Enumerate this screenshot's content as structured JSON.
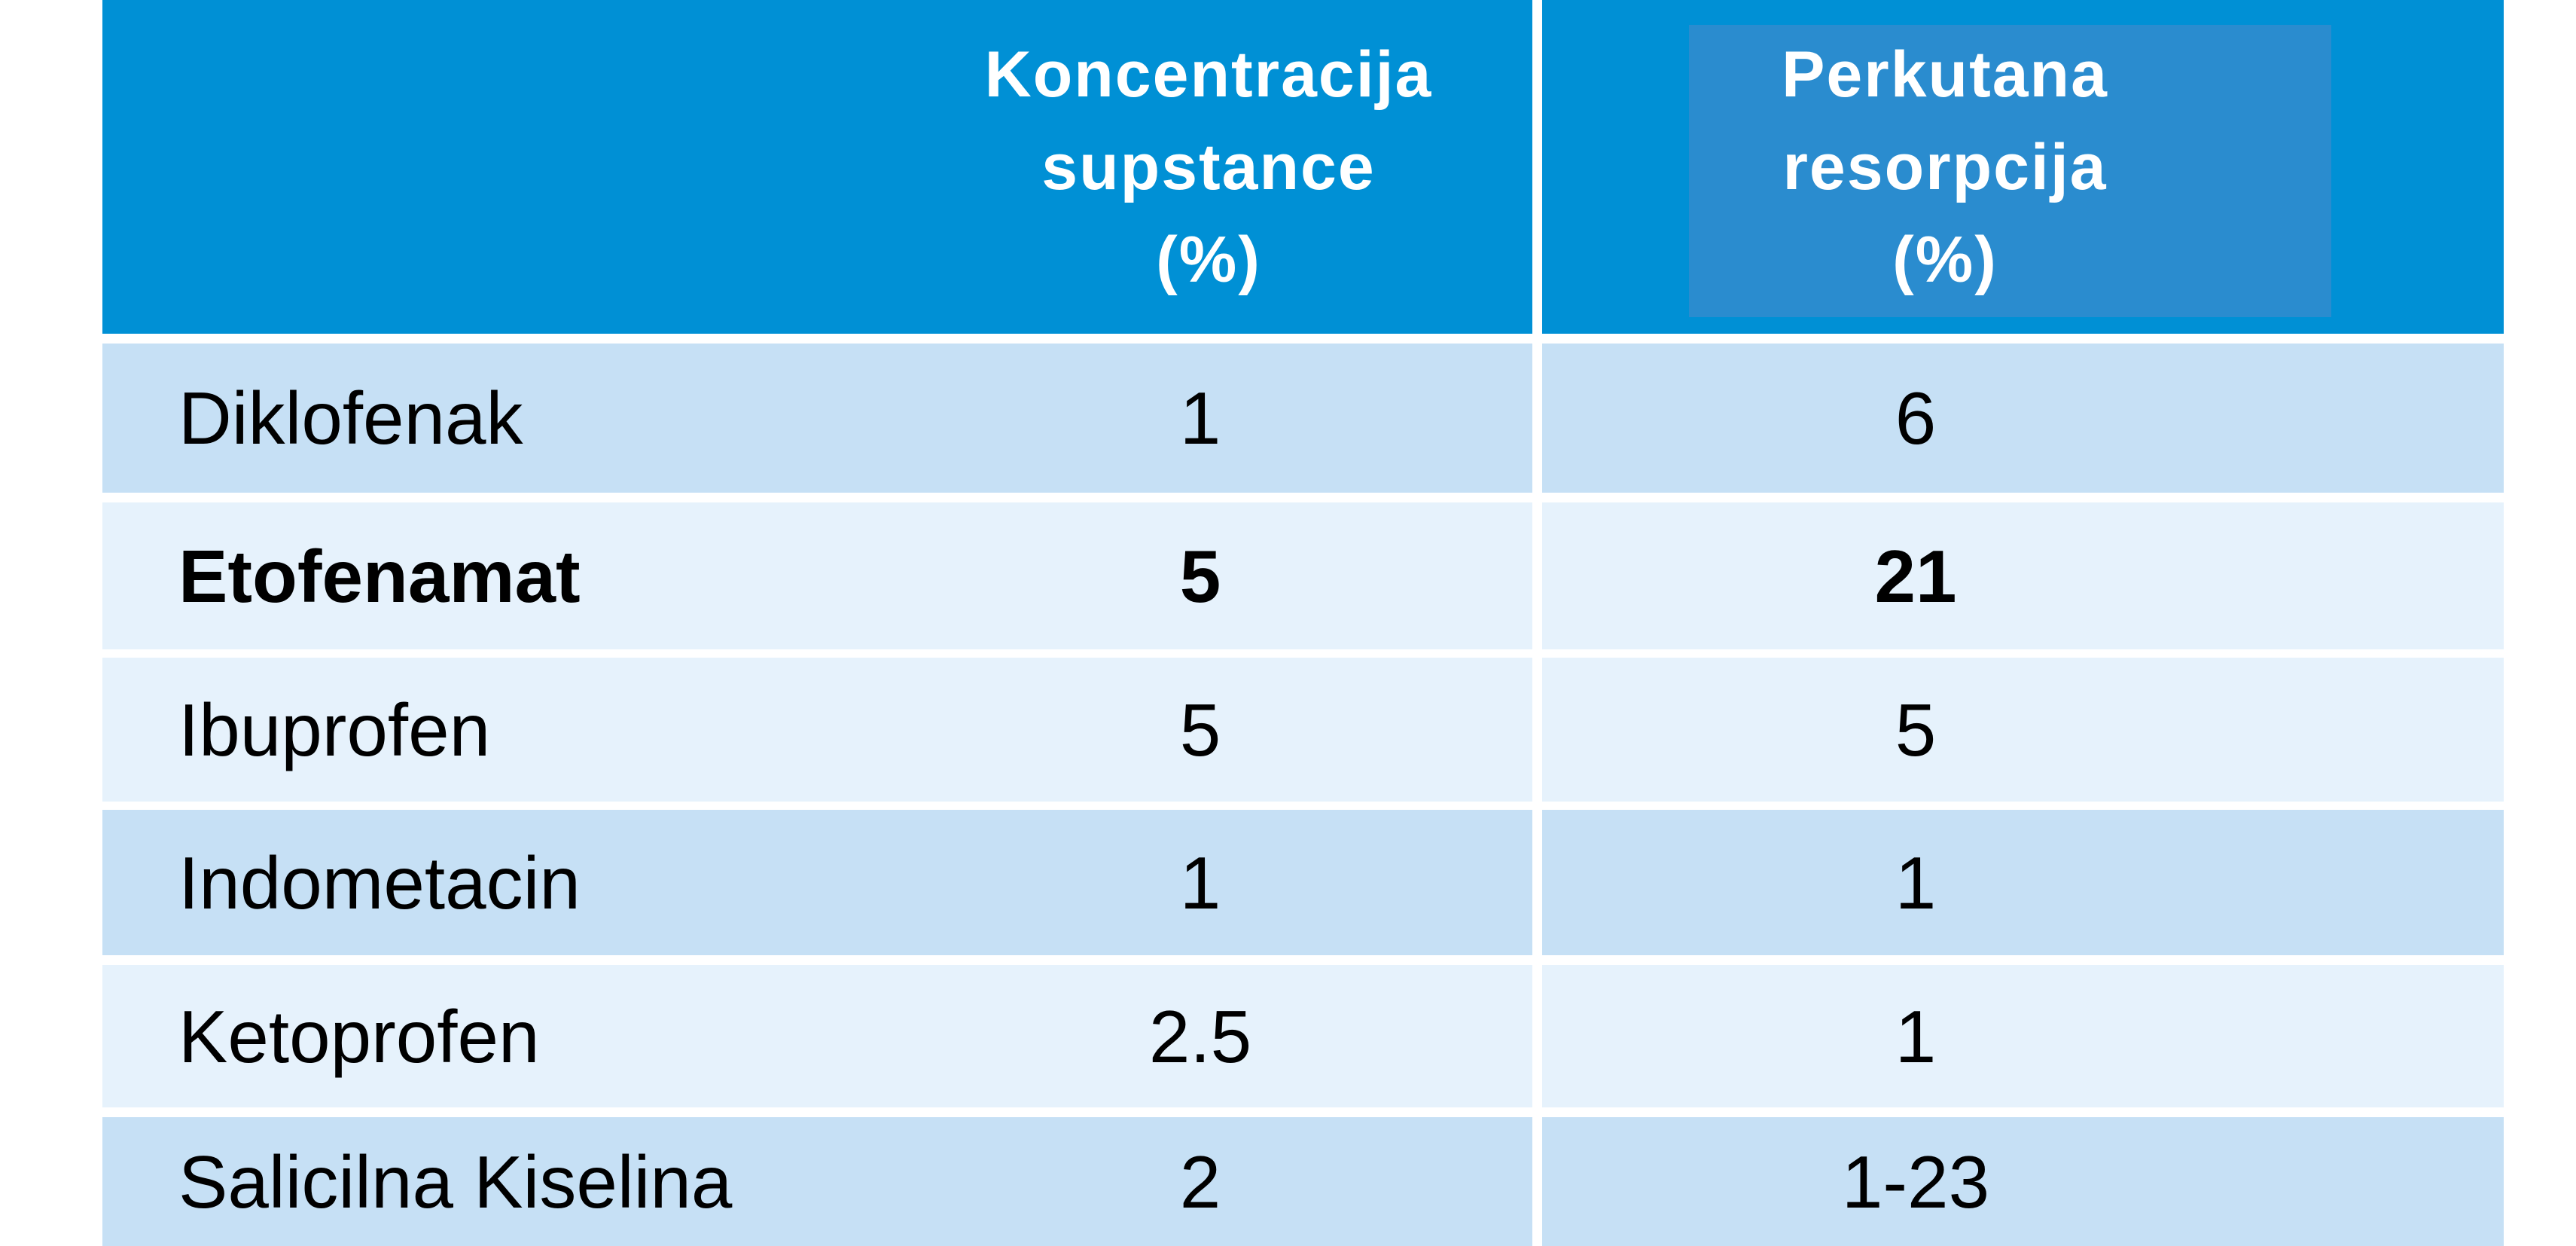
{
  "table": {
    "header": [
      "Koncentracija\nsupstance\n(%)",
      "Perkutana\nresorpcija\n(%)"
    ],
    "rows": [
      [
        "Diklofenak",
        "1",
        "6"
      ],
      [
        "Etofenamat",
        "5",
        "21"
      ],
      [
        "Ibuprofen",
        "5",
        "5"
      ],
      [
        "Indometacin",
        "1",
        "1"
      ],
      [
        "Ketoprofen",
        "2.5",
        "1"
      ],
      [
        "Salicilna Kiselina",
        "2",
        "1-23"
      ]
    ]
  }
}
